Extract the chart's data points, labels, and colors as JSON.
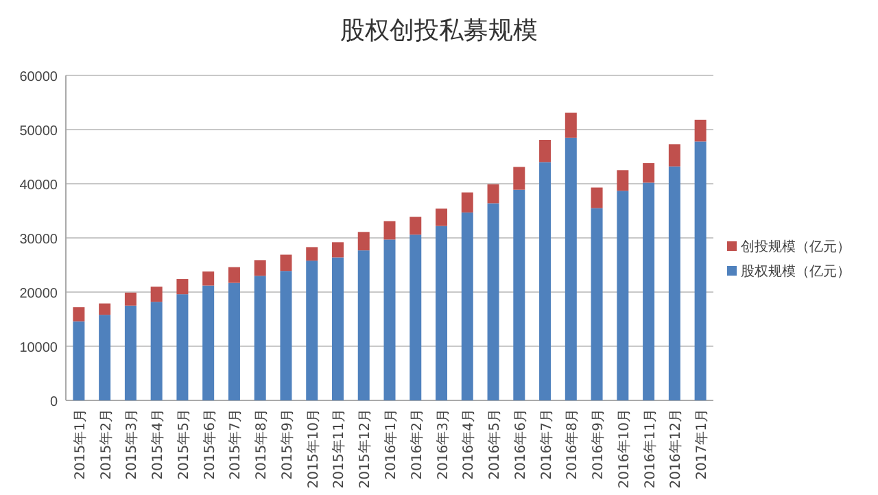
{
  "chart_data": {
    "type": "bar",
    "title": "股权创投私募规模",
    "stacked": true,
    "grid": "y",
    "legend": "right",
    "categories": [
      "2015年1月",
      "2015年2月",
      "2015年3月",
      "2015年4月",
      "2015年5月",
      "2015年6月",
      "2015年7月",
      "2015年8月",
      "2015年9月",
      "2015年10月",
      "2015年11月",
      "2015年12月",
      "2016年1月",
      "2016年2月",
      "2016年3月",
      "2016年4月",
      "2016年5月",
      "2016年6月",
      "2016年7月",
      "2016年8月",
      "2016年9月",
      "2016年10月",
      "2016年11月",
      "2016年12月",
      "2017年1月"
    ],
    "series": [
      {
        "name": "股权规模（亿元）",
        "color": "#4f81bd",
        "values": [
          14600,
          15800,
          17500,
          18200,
          19600,
          21200,
          21700,
          23000,
          23900,
          25800,
          26400,
          27700,
          29700,
          30600,
          32200,
          34700,
          36400,
          38900,
          44000,
          48500,
          35500,
          38700,
          40200,
          43200,
          47800
        ]
      },
      {
        "name": "创投规模（亿元）",
        "color": "#c0504d",
        "values": [
          2600,
          2100,
          2400,
          2800,
          2800,
          2600,
          2900,
          2900,
          3000,
          2500,
          2800,
          3400,
          3400,
          3300,
          3200,
          3700,
          3500,
          4200,
          4100,
          4600,
          3800,
          3800,
          3600,
          4100,
          4000
        ]
      }
    ],
    "ylim": [
      0,
      60000
    ],
    "yticks": [
      0,
      10000,
      20000,
      30000,
      40000,
      50000,
      60000
    ]
  }
}
